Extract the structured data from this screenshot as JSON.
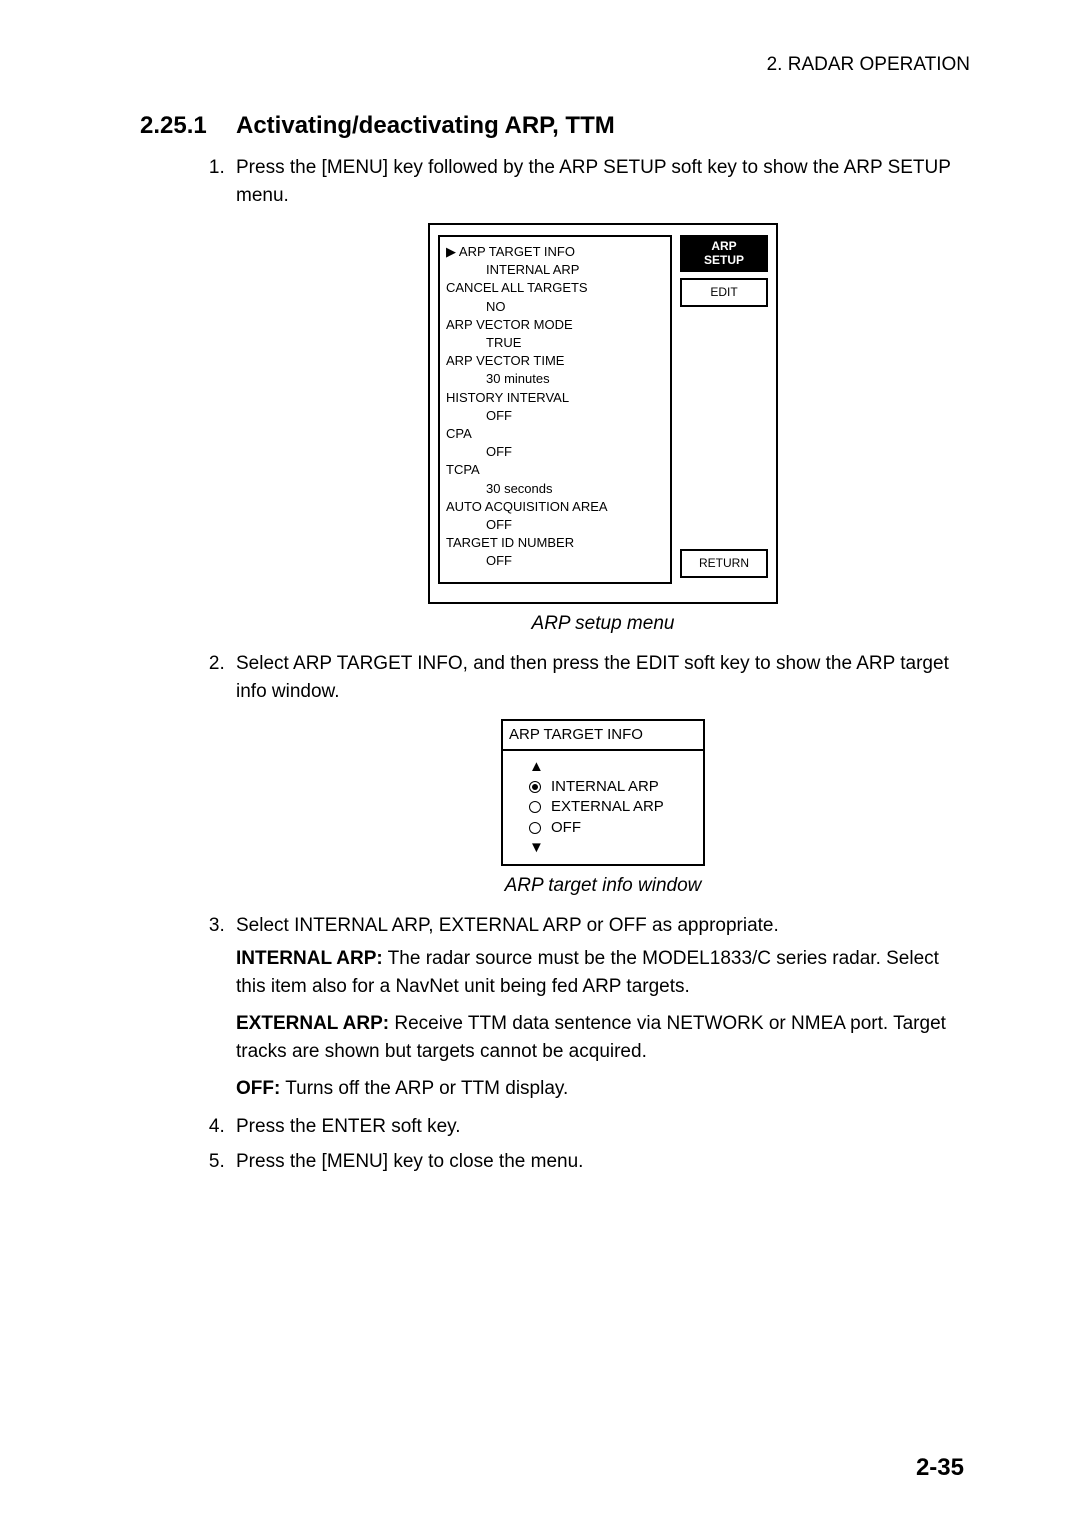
{
  "header": {
    "rightText": "2. RADAR OPERATION"
  },
  "heading": {
    "number": "2.25.1",
    "title": "Activating/deactivating ARP, TTM"
  },
  "steps": {
    "s1": "Press the [MENU] key followed by the ARP SETUP soft key to show the ARP SETUP menu.",
    "s2": "Select ARP TARGET INFO, and then press the EDIT soft key to show the ARP target info window.",
    "s3": "Select INTERNAL ARP, EXTERNAL ARP or OFF as appropriate.",
    "s3_internal_label": "INTERNAL ARP:",
    "s3_internal_text": " The radar source must be the MODEL1833/C series radar. Select this item also for a NavNet unit being fed ARP targets.",
    "s3_external_label": "EXTERNAL ARP:",
    "s3_external_text": " Receive TTM data sentence via NETWORK or NMEA port. Target tracks are shown but targets cannot be acquired.",
    "s3_off_label": "OFF:",
    "s3_off_text": " Turns off the ARP or TTM display.",
    "s4": "Press the ENTER soft key.",
    "s5": "Press the [MENU] key to close the menu."
  },
  "arpSetupMenu": {
    "items": [
      {
        "label": "ARP TARGET INFO",
        "value": "INTERNAL ARP",
        "lead": true
      },
      {
        "label": "CANCEL ALL TARGETS",
        "value": "NO"
      },
      {
        "label": "ARP VECTOR MODE",
        "value": "TRUE"
      },
      {
        "label": "ARP VECTOR TIME",
        "value": "30 minutes"
      },
      {
        "label": "HISTORY INTERVAL",
        "value": "OFF"
      },
      {
        "label": "CPA",
        "value": "OFF"
      },
      {
        "label": "TCPA",
        "value": "30 seconds"
      },
      {
        "label": "AUTO ACQUISITION AREA",
        "value": "OFF"
      },
      {
        "label": "TARGET ID NUMBER",
        "value": "OFF"
      }
    ],
    "softkeys": {
      "title1": "ARP",
      "title2": "SETUP",
      "edit": "EDIT",
      "return": "RETURN"
    },
    "caption": "ARP setup menu"
  },
  "targetInfo": {
    "title": "ARP TARGET INFO",
    "options": [
      {
        "label": "INTERNAL ARP",
        "selected": true
      },
      {
        "label": "EXTERNAL ARP",
        "selected": false
      },
      {
        "label": "OFF",
        "selected": false
      }
    ],
    "caption": "ARP target info window"
  },
  "pageNumber": "2-35",
  "colors": {
    "text": "#000000",
    "background": "#ffffff"
  }
}
